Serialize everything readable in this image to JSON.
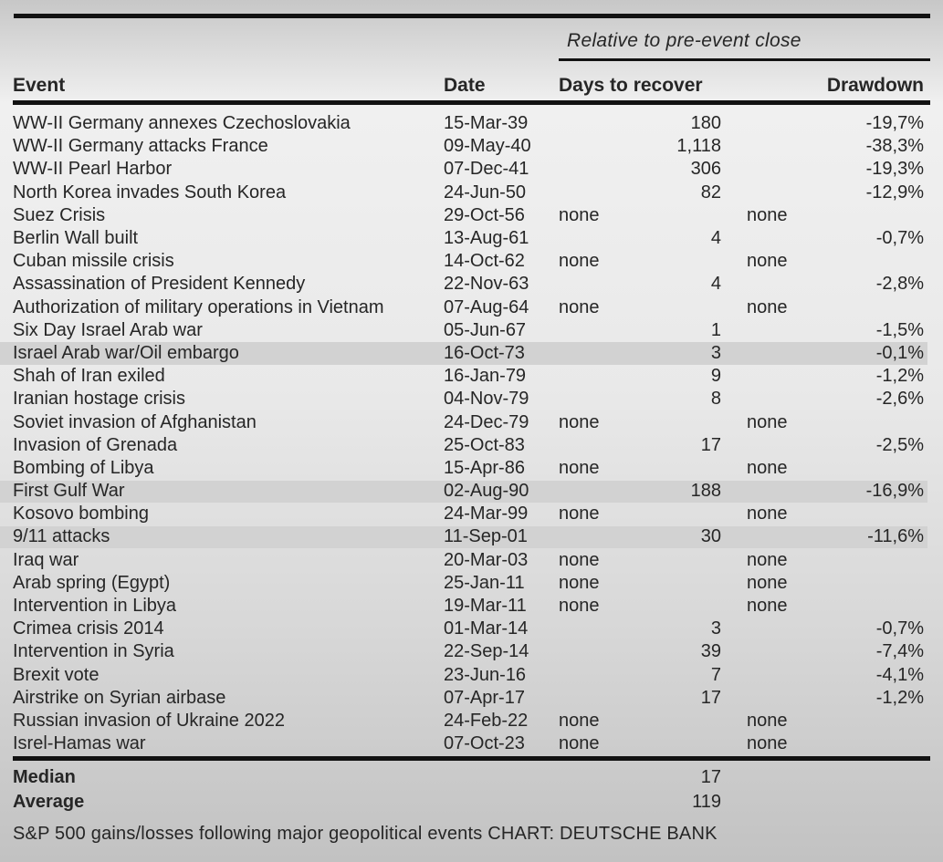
{
  "chart_data": {
    "type": "table",
    "group_header": "Relative to pre-event close",
    "columns": {
      "event": "Event",
      "date": "Date",
      "days_to_recover": "Days to recover",
      "drawdown": "Drawdown"
    },
    "rows": [
      {
        "event": "WW-II Germany annexes Czechoslovakia",
        "date": "15-Mar-39",
        "days_to_recover": "180",
        "drawdown": "-19,7%",
        "highlighted": false
      },
      {
        "event": "WW-II Germany attacks France",
        "date": "09-May-40",
        "days_to_recover": "1,118",
        "drawdown": "-38,3%",
        "highlighted": false
      },
      {
        "event": "WW-II Pearl Harbor",
        "date": "07-Dec-41",
        "days_to_recover": "306",
        "drawdown": "-19,3%",
        "highlighted": false
      },
      {
        "event": "North Korea invades South Korea",
        "date": "24-Jun-50",
        "days_to_recover": "82",
        "drawdown": "-12,9%",
        "highlighted": false
      },
      {
        "event": "Suez Crisis",
        "date": "29-Oct-56",
        "days_to_recover": "none",
        "drawdown": "none",
        "highlighted": false
      },
      {
        "event": "Berlin Wall built",
        "date": "13-Aug-61",
        "days_to_recover": "4",
        "drawdown": "-0,7%",
        "highlighted": false
      },
      {
        "event": "Cuban missile crisis",
        "date": "14-Oct-62",
        "days_to_recover": "none",
        "drawdown": "none",
        "highlighted": false
      },
      {
        "event": "Assassination of President Kennedy",
        "date": "22-Nov-63",
        "days_to_recover": "4",
        "drawdown": "-2,8%",
        "highlighted": false
      },
      {
        "event": "Authorization of military operations in Vietnam",
        "date": "07-Aug-64",
        "days_to_recover": "none",
        "drawdown": "none",
        "highlighted": false
      },
      {
        "event": "Six Day Israel Arab war",
        "date": "05-Jun-67",
        "days_to_recover": "1",
        "drawdown": "-1,5%",
        "highlighted": false
      },
      {
        "event": "Israel Arab war/Oil embargo",
        "date": "16-Oct-73",
        "days_to_recover": "3",
        "drawdown": "-0,1%",
        "highlighted": true
      },
      {
        "event": "Shah of Iran exiled",
        "date": "16-Jan-79",
        "days_to_recover": "9",
        "drawdown": "-1,2%",
        "highlighted": false
      },
      {
        "event": "Iranian hostage crisis",
        "date": "04-Nov-79",
        "days_to_recover": "8",
        "drawdown": "-2,6%",
        "highlighted": false
      },
      {
        "event": "Soviet invasion of Afghanistan",
        "date": "24-Dec-79",
        "days_to_recover": "none",
        "drawdown": "none",
        "highlighted": false
      },
      {
        "event": "Invasion of Grenada",
        "date": "25-Oct-83",
        "days_to_recover": "17",
        "drawdown": "-2,5%",
        "highlighted": false
      },
      {
        "event": "Bombing of Libya",
        "date": "15-Apr-86",
        "days_to_recover": "none",
        "drawdown": "none",
        "highlighted": false
      },
      {
        "event": "First Gulf War",
        "date": "02-Aug-90",
        "days_to_recover": "188",
        "drawdown": "-16,9%",
        "highlighted": true
      },
      {
        "event": "Kosovo bombing",
        "date": "24-Mar-99",
        "days_to_recover": "none",
        "drawdown": "none",
        "highlighted": false
      },
      {
        "event": "9/11 attacks",
        "date": "11-Sep-01",
        "days_to_recover": "30",
        "drawdown": "-11,6%",
        "highlighted": true
      },
      {
        "event": "Iraq war",
        "date": "20-Mar-03",
        "days_to_recover": "none",
        "drawdown": "none",
        "highlighted": false
      },
      {
        "event": "Arab spring (Egypt)",
        "date": "25-Jan-11",
        "days_to_recover": "none",
        "drawdown": "none",
        "highlighted": false
      },
      {
        "event": "Intervention in Libya",
        "date": "19-Mar-11",
        "days_to_recover": "none",
        "drawdown": "none",
        "highlighted": false
      },
      {
        "event": "Crimea crisis 2014",
        "date": "01-Mar-14",
        "days_to_recover": "3",
        "drawdown": "-0,7%",
        "highlighted": false
      },
      {
        "event": "Intervention in Syria",
        "date": "22-Sep-14",
        "days_to_recover": "39",
        "drawdown": "-7,4%",
        "highlighted": false
      },
      {
        "event": "Brexit vote",
        "date": "23-Jun-16",
        "days_to_recover": "7",
        "drawdown": "-4,1%",
        "highlighted": false
      },
      {
        "event": "Airstrike on Syrian airbase",
        "date": "07-Apr-17",
        "days_to_recover": "17",
        "drawdown": "-1,2%",
        "highlighted": false
      },
      {
        "event": "Russian invasion of Ukraine 2022",
        "date": "24-Feb-22",
        "days_to_recover": "none",
        "drawdown": "none",
        "highlighted": false
      },
      {
        "event": "Isrel-Hamas war",
        "date": "07-Oct-23",
        "days_to_recover": "none",
        "drawdown": "none",
        "highlighted": false
      }
    ],
    "summary_rows": [
      {
        "label": "Median",
        "days_to_recover": "17"
      },
      {
        "label": "Average",
        "days_to_recover": "119"
      }
    ],
    "caption": "S&P 500 gains/losses following major geopolitical events CHART: DEUTSCHE BANK"
  },
  "colors": {
    "text": "#262626",
    "rule": "#121212",
    "row_highlight": "#d2d2d2",
    "background_top": "#c7c7c7",
    "background_mid": "#f0f0f0",
    "background_bottom": "#c2c2c2"
  }
}
